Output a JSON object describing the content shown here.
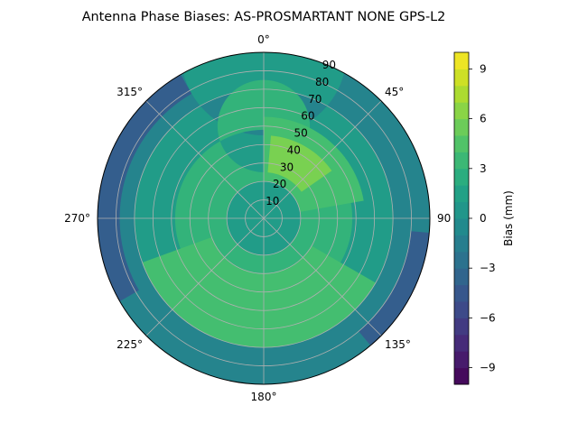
{
  "chart_data": {
    "type": "heatmap",
    "projection": "polar",
    "title": "Antenna Phase Biases: AS-PROSMARTANT  NONE GPS-L2",
    "theta_zero_location": "N",
    "theta_direction": "clockwise",
    "theta_ticks": [
      0,
      45,
      90,
      135,
      180,
      225,
      270,
      315
    ],
    "theta_tick_labels": [
      "0°",
      "45°",
      "90",
      "135°",
      "180°",
      "225°",
      "270°",
      "315°"
    ],
    "r_range": [
      0,
      90
    ],
    "r_ticks": [
      10,
      20,
      30,
      40,
      50,
      60,
      70,
      80,
      90
    ],
    "r_tick_labels": [
      "10",
      "20",
      "30",
      "40",
      "50",
      "60",
      "70",
      "80",
      "90"
    ],
    "grid": true,
    "colormap": "viridis",
    "colorbar": {
      "label": "Bias (mm)",
      "range": [
        -10,
        10
      ],
      "level_step": 1,
      "ticks": [
        -9,
        -6,
        -3,
        0,
        3,
        6,
        9
      ],
      "tick_labels": [
        "−9",
        "−6",
        "−3",
        "0",
        "3",
        "6",
        "9"
      ]
    },
    "contour_regions": [
      {
        "name": "outer-ring",
        "level": -1,
        "azimuth_deg": [
          0,
          360
        ],
        "zenith_deg": [
          65,
          90
        ]
      },
      {
        "name": "west-edge",
        "level": -4,
        "azimuth_deg": [
          240,
          330
        ],
        "zenith_deg": [
          78,
          90
        ]
      },
      {
        "name": "east-edge",
        "level": -4,
        "azimuth_deg": [
          95,
          140
        ],
        "zenith_deg": [
          80,
          90
        ]
      },
      {
        "name": "mid-ring",
        "level": 1,
        "azimuth_deg": [
          0,
          360
        ],
        "zenith_deg": [
          45,
          70
        ]
      },
      {
        "name": "inner-ring",
        "level": 3,
        "azimuth_deg": [
          0,
          360
        ],
        "zenith_deg": [
          25,
          48
        ]
      },
      {
        "name": "north-east-lobe",
        "level": 4,
        "azimuth_deg": [
          0,
          80
        ],
        "zenith_deg": [
          20,
          55
        ]
      },
      {
        "name": "north-east-peak",
        "level": 6,
        "azimuth_deg": [
          5,
          55
        ],
        "zenith_deg": [
          25,
          45
        ]
      },
      {
        "name": "south-band",
        "level": 4,
        "azimuth_deg": [
          120,
          250
        ],
        "zenith_deg": [
          30,
          70
        ]
      },
      {
        "name": "center",
        "level": 1,
        "azimuth_deg": [
          0,
          360
        ],
        "zenith_deg": [
          0,
          20
        ]
      }
    ]
  }
}
